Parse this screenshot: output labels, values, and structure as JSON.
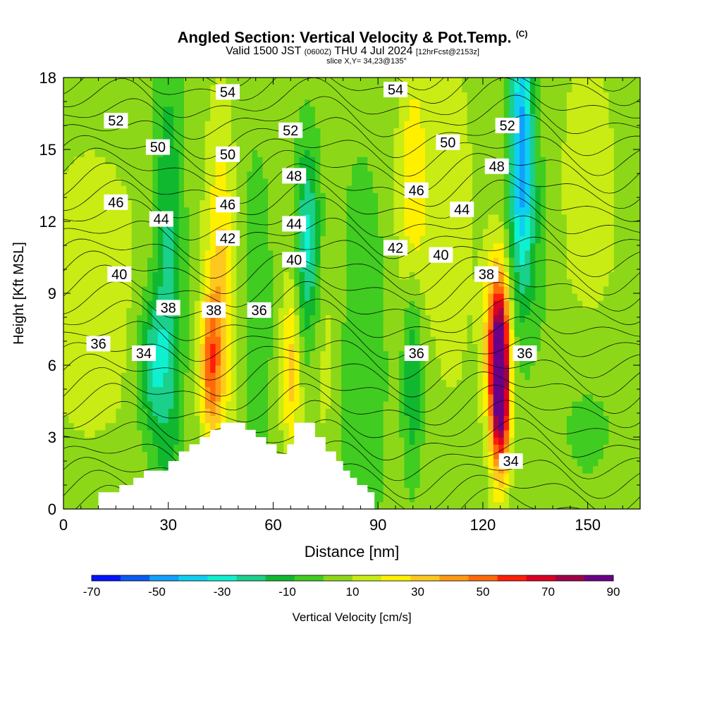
{
  "header": {
    "title_main": "Angled Section: Vertical Velocity & Pot.Temp.",
    "title_mark": "(C)",
    "valid_prefix": "Valid 1500 JST",
    "valid_utc": "(0600Z)",
    "valid_date": "THU 4 Jul 2024",
    "forecast": "[12hrFcst@2153z]",
    "slice": "slice X,Y= 34,23@135°"
  },
  "colors": {
    "ramp": [
      "#0014ff",
      "#0a5cf0",
      "#12a0ff",
      "#0ecff0",
      "#0ff0d0",
      "#1ad08a",
      "#10b830",
      "#40cc20",
      "#8cd818",
      "#c8ec14",
      "#fff000",
      "#ffc81e",
      "#ff9a14",
      "#ff6a0a",
      "#ff1e0a",
      "#dc0022",
      "#a0004a",
      "#6a0088"
    ],
    "terrain": "#ffffff",
    "contour": "#000000"
  },
  "chart_data": {
    "type": "heatmap",
    "xlabel": "Distance [nm]",
    "ylabel": "Height [Kft MSL]",
    "xlim": [
      0,
      165
    ],
    "ylim": [
      0,
      18
    ],
    "xticks": [
      0,
      30,
      60,
      90,
      120,
      150
    ],
    "yticks": [
      0,
      3,
      6,
      9,
      12,
      15,
      18
    ],
    "colorbar": {
      "label": "Vertical Velocity [cm/s]",
      "levels": [
        -80,
        -70,
        -60,
        -50,
        -40,
        -30,
        -20,
        -10,
        0,
        10,
        20,
        30,
        40,
        50,
        60,
        70,
        80,
        90
      ],
      "tick_labels": [
        -70,
        -50,
        -30,
        -10,
        10,
        30,
        50,
        70,
        90
      ]
    },
    "terrain_profile": [
      [
        10,
        0.7
      ],
      [
        16,
        0.7
      ],
      [
        16,
        1.0
      ],
      [
        20,
        1.0
      ],
      [
        20,
        1.3
      ],
      [
        23,
        1.3
      ],
      [
        23,
        1.6
      ],
      [
        30,
        1.6
      ],
      [
        30,
        2.0
      ],
      [
        33,
        2.0
      ],
      [
        33,
        2.4
      ],
      [
        36,
        2.4
      ],
      [
        36,
        2.7
      ],
      [
        39,
        2.7
      ],
      [
        39,
        3.0
      ],
      [
        42,
        3.0
      ],
      [
        42,
        3.3
      ],
      [
        45,
        3.3
      ],
      [
        45,
        3.6
      ],
      [
        52,
        3.6
      ],
      [
        52,
        3.3
      ],
      [
        55,
        3.3
      ],
      [
        55,
        3.0
      ],
      [
        58,
        3.0
      ],
      [
        58,
        2.7
      ],
      [
        61,
        2.7
      ],
      [
        61,
        2.3
      ],
      [
        64,
        2.3
      ],
      [
        64,
        2.7
      ],
      [
        66,
        2.7
      ],
      [
        66,
        3.6
      ],
      [
        72,
        3.6
      ],
      [
        72,
        3.0
      ],
      [
        75,
        3.0
      ],
      [
        75,
        2.4
      ],
      [
        78,
        2.4
      ],
      [
        78,
        2.0
      ],
      [
        80,
        2.0
      ],
      [
        80,
        1.6
      ],
      [
        82,
        1.6
      ],
      [
        82,
        1.3
      ],
      [
        84,
        1.3
      ],
      [
        84,
        1.0
      ],
      [
        87,
        1.0
      ],
      [
        87,
        0.7
      ],
      [
        89,
        0.7
      ],
      [
        89,
        0.3
      ]
    ],
    "velocity_features": [
      {
        "x": 8,
        "y": 9,
        "value": 10,
        "sx": 12,
        "sy": 5
      },
      {
        "x": 30,
        "y": 9,
        "value": -30,
        "sx": 3,
        "sy": 7
      },
      {
        "x": 25,
        "y": 6,
        "value": -30,
        "sx": 3,
        "sy": 2
      },
      {
        "x": 45,
        "y": 9,
        "value": 30,
        "sx": 3,
        "sy": 5
      },
      {
        "x": 42,
        "y": 6,
        "value": 40,
        "sx": 2,
        "sy": 2
      },
      {
        "x": 55,
        "y": 8,
        "value": -10,
        "sx": 4,
        "sy": 6
      },
      {
        "x": 65,
        "y": 6,
        "value": 30,
        "sx": 2,
        "sy": 2.5
      },
      {
        "x": 70,
        "y": 11,
        "value": -40,
        "sx": 2.5,
        "sy": 3
      },
      {
        "x": 75,
        "y": 7,
        "value": 10,
        "sx": 4,
        "sy": 4
      },
      {
        "x": 85,
        "y": 6,
        "value": -15,
        "sx": 5,
        "sy": 6
      },
      {
        "x": 100,
        "y": 6,
        "value": -30,
        "sx": 2,
        "sy": 3
      },
      {
        "x": 100,
        "y": 13,
        "value": 25,
        "sx": 3,
        "sy": 4
      },
      {
        "x": 111,
        "y": 12,
        "value": 10,
        "sx": 5,
        "sy": 6
      },
      {
        "x": 125,
        "y": 5,
        "value": 90,
        "sx": 1.8,
        "sy": 2.5
      },
      {
        "x": 124,
        "y": 7,
        "value": 50,
        "sx": 2.5,
        "sy": 2.5
      },
      {
        "x": 131,
        "y": 15,
        "value": -60,
        "sx": 2.5,
        "sy": 4
      },
      {
        "x": 135,
        "y": 11,
        "value": -10,
        "sx": 4,
        "sy": 3
      },
      {
        "x": 150,
        "y": 12,
        "value": 10,
        "sx": 7,
        "sy": 6
      },
      {
        "x": 150,
        "y": 4,
        "value": -10,
        "sx": 8,
        "sy": 3
      }
    ],
    "contour_labels": [
      {
        "text": "54",
        "x": 47,
        "y": 17.4
      },
      {
        "text": "54",
        "x": 95,
        "y": 17.5
      },
      {
        "text": "52",
        "x": 15,
        "y": 16.2
      },
      {
        "text": "52",
        "x": 65,
        "y": 15.8
      },
      {
        "text": "52",
        "x": 127,
        "y": 16.0
      },
      {
        "text": "50",
        "x": 27,
        "y": 15.1
      },
      {
        "text": "50",
        "x": 47,
        "y": 14.8
      },
      {
        "text": "50",
        "x": 110,
        "y": 15.3
      },
      {
        "text": "48",
        "x": 66,
        "y": 13.9
      },
      {
        "text": "48",
        "x": 124,
        "y": 14.3
      },
      {
        "text": "46",
        "x": 15,
        "y": 12.8
      },
      {
        "text": "46",
        "x": 47,
        "y": 12.7
      },
      {
        "text": "46",
        "x": 101,
        "y": 13.3
      },
      {
        "text": "44",
        "x": 28,
        "y": 12.1
      },
      {
        "text": "44",
        "x": 66,
        "y": 11.9
      },
      {
        "text": "44",
        "x": 114,
        "y": 12.5
      },
      {
        "text": "42",
        "x": 47,
        "y": 11.3
      },
      {
        "text": "42",
        "x": 95,
        "y": 10.9
      },
      {
        "text": "40",
        "x": 16,
        "y": 9.8
      },
      {
        "text": "40",
        "x": 66,
        "y": 10.4
      },
      {
        "text": "40",
        "x": 108,
        "y": 10.6
      },
      {
        "text": "38",
        "x": 30,
        "y": 8.4
      },
      {
        "text": "38",
        "x": 43,
        "y": 8.3
      },
      {
        "text": "38",
        "x": 121,
        "y": 9.8
      },
      {
        "text": "36",
        "x": 10,
        "y": 6.9
      },
      {
        "text": "36",
        "x": 56,
        "y": 8.3
      },
      {
        "text": "36",
        "x": 101,
        "y": 6.5
      },
      {
        "text": "36",
        "x": 132,
        "y": 6.5
      },
      {
        "text": "34",
        "x": 23,
        "y": 6.5
      },
      {
        "text": "34",
        "x": 128,
        "y": 2.0
      }
    ]
  }
}
